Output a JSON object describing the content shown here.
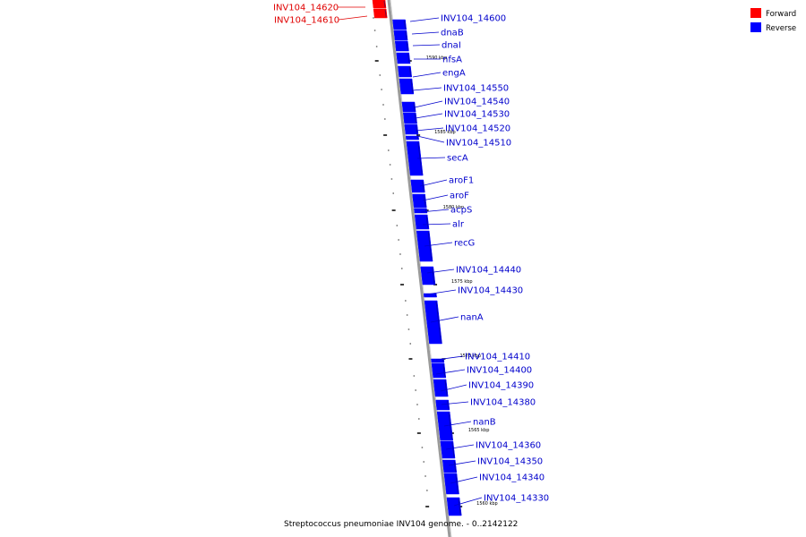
{
  "caption": "Streptococcus pneumoniae INV104 genome. - 0..2142122",
  "legend": [
    {
      "label": "Forward",
      "color": "#ff0000"
    },
    {
      "label": "Reverse",
      "color": "#0000ff"
    }
  ],
  "colors": {
    "forward": "#ff0000",
    "forward_text": "#e00000",
    "reverse": "#0000ff",
    "reverse_text": "#0000cc",
    "backbone": "#999999"
  },
  "ticks": [
    "1590 kbp",
    "1585 kbp",
    "1580 kbp",
    "1575 kbp",
    "1570 kbp",
    "1565 kbp",
    "1560 kbp"
  ],
  "forward_genes": [
    "INV104_14620",
    "INV104_14610"
  ],
  "reverse_genes": [
    "INV104_14600",
    "dnaB",
    "dnaI",
    "nfsA",
    "engA",
    "INV104_14550",
    "INV104_14540",
    "INV104_14530",
    "INV104_14520",
    "INV104_14510",
    "secA",
    "aroF1",
    "aroF",
    "acpS",
    "alr",
    "recG",
    "INV104_14440",
    "INV104_14430",
    "nanA",
    "INV104_14410",
    "INV104_14400",
    "INV104_14390",
    "INV104_14380",
    "nanB",
    "INV104_14360",
    "INV104_14350",
    "INV104_14340",
    "INV104_14330"
  ]
}
